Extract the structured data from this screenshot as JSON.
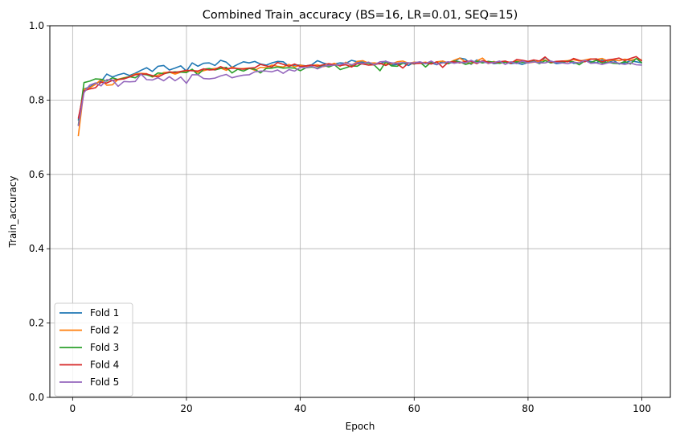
{
  "chart_data": {
    "type": "line",
    "title": "Combined Train_accuracy (BS=16, LR=0.01, SEQ=15)",
    "xlabel": "Epoch",
    "ylabel": "Train_accuracy",
    "xlim": [
      -4,
      105
    ],
    "ylim": [
      0.0,
      1.0
    ],
    "xticks": [
      0,
      20,
      40,
      60,
      80,
      100
    ],
    "yticks": [
      0.0,
      0.2,
      0.4,
      0.6,
      0.8,
      1.0
    ],
    "xtick_labels": [
      "0",
      "20",
      "40",
      "60",
      "80",
      "100"
    ],
    "ytick_labels": [
      "0.0",
      "0.2",
      "0.4",
      "0.6",
      "0.8",
      "1.0"
    ],
    "grid": true,
    "legend_position": "lower-left",
    "series": [
      {
        "name": "Fold 1",
        "color": "#1f77b4",
        "x": [
          1,
          2,
          3,
          4,
          5,
          6,
          7,
          8,
          9,
          10,
          11,
          12,
          13,
          14,
          15,
          16,
          17,
          18,
          19,
          20,
          21,
          22,
          23,
          24,
          25,
          26,
          27,
          28,
          29,
          30,
          31,
          32,
          33,
          34,
          35,
          36,
          37,
          38,
          39,
          40,
          41,
          42,
          43,
          44,
          45,
          46,
          47,
          48,
          49,
          50,
          51,
          52,
          53,
          54,
          55,
          56,
          57,
          58,
          59,
          60,
          61,
          62,
          63,
          64,
          65,
          66,
          67,
          68,
          69,
          70,
          71,
          72,
          73,
          74,
          75,
          76,
          77,
          78,
          79,
          80,
          81,
          82,
          83,
          84,
          85,
          86,
          87,
          88,
          89,
          90,
          91,
          92,
          93,
          94,
          95,
          96,
          97,
          98,
          99,
          100
        ],
        "values": [
          0.745,
          0.83,
          0.835,
          0.845,
          0.85,
          0.87,
          0.862,
          0.868,
          0.872,
          0.866,
          0.872,
          0.88,
          0.887,
          0.877,
          0.891,
          0.893,
          0.881,
          0.886,
          0.892,
          0.878,
          0.9,
          0.891,
          0.899,
          0.9,
          0.893,
          0.907,
          0.902,
          0.888,
          0.896,
          0.903,
          0.9,
          0.904,
          0.897,
          0.894,
          0.9,
          0.904,
          0.903,
          0.891,
          0.894,
          0.894,
          0.892,
          0.895,
          0.906,
          0.9,
          0.895,
          0.897,
          0.9,
          0.899,
          0.907,
          0.903,
          0.902,
          0.9,
          0.899,
          0.897,
          0.905,
          0.894,
          0.896,
          0.9,
          0.893,
          0.902,
          0.9,
          0.898,
          0.9,
          0.895,
          0.905,
          0.899,
          0.902,
          0.913,
          0.91,
          0.896,
          0.908,
          0.9,
          0.904,
          0.898,
          0.9,
          0.902,
          0.898,
          0.9,
          0.896,
          0.901,
          0.904,
          0.9,
          0.915,
          0.904,
          0.898,
          0.9,
          0.905,
          0.899,
          0.9,
          0.907,
          0.904,
          0.9,
          0.908,
          0.9,
          0.907,
          0.897,
          0.9,
          0.906,
          0.903,
          0.9
        ]
      },
      {
        "name": "Fold 2",
        "color": "#ff7f0e",
        "x": [
          1,
          2,
          3,
          4,
          5,
          6,
          7,
          8,
          9,
          10,
          11,
          12,
          13,
          14,
          15,
          16,
          17,
          18,
          19,
          20,
          21,
          22,
          23,
          24,
          25,
          26,
          27,
          28,
          29,
          30,
          31,
          32,
          33,
          34,
          35,
          36,
          37,
          38,
          39,
          40,
          41,
          42,
          43,
          44,
          45,
          46,
          47,
          48,
          49,
          50,
          51,
          52,
          53,
          54,
          55,
          56,
          57,
          58,
          59,
          60,
          61,
          62,
          63,
          64,
          65,
          66,
          67,
          68,
          69,
          70,
          71,
          72,
          73,
          74,
          75,
          76,
          77,
          78,
          79,
          80,
          81,
          82,
          83,
          84,
          85,
          86,
          87,
          88,
          89,
          90,
          91,
          92,
          93,
          94,
          95,
          96,
          97,
          98,
          99,
          100
        ],
        "values": [
          0.703,
          0.829,
          0.833,
          0.842,
          0.855,
          0.84,
          0.841,
          0.856,
          0.86,
          0.863,
          0.87,
          0.872,
          0.871,
          0.862,
          0.867,
          0.874,
          0.875,
          0.87,
          0.875,
          0.876,
          0.882,
          0.874,
          0.879,
          0.883,
          0.885,
          0.886,
          0.88,
          0.889,
          0.884,
          0.885,
          0.886,
          0.88,
          0.888,
          0.887,
          0.894,
          0.891,
          0.889,
          0.896,
          0.889,
          0.894,
          0.891,
          0.893,
          0.895,
          0.89,
          0.893,
          0.899,
          0.891,
          0.902,
          0.893,
          0.904,
          0.906,
          0.899,
          0.9,
          0.898,
          0.897,
          0.897,
          0.903,
          0.905,
          0.899,
          0.902,
          0.9,
          0.902,
          0.898,
          0.903,
          0.905,
          0.9,
          0.907,
          0.913,
          0.903,
          0.898,
          0.905,
          0.913,
          0.898,
          0.904,
          0.899,
          0.903,
          0.902,
          0.905,
          0.903,
          0.9,
          0.902,
          0.905,
          0.908,
          0.9,
          0.903,
          0.905,
          0.906,
          0.909,
          0.905,
          0.908,
          0.911,
          0.909,
          0.912,
          0.905,
          0.908,
          0.906,
          0.91,
          0.907,
          0.911,
          0.908
        ]
      },
      {
        "name": "Fold 3",
        "color": "#2ca02c",
        "x": [
          1,
          2,
          3,
          4,
          5,
          6,
          7,
          8,
          9,
          10,
          11,
          12,
          13,
          14,
          15,
          16,
          17,
          18,
          19,
          20,
          21,
          22,
          23,
          24,
          25,
          26,
          27,
          28,
          29,
          30,
          31,
          32,
          33,
          34,
          35,
          36,
          37,
          38,
          39,
          40,
          41,
          42,
          43,
          44,
          45,
          46,
          47,
          48,
          49,
          50,
          51,
          52,
          53,
          54,
          55,
          56,
          57,
          58,
          59,
          60,
          61,
          62,
          63,
          64,
          65,
          66,
          67,
          68,
          69,
          70,
          71,
          72,
          73,
          74,
          75,
          76,
          77,
          78,
          79,
          80,
          81,
          82,
          83,
          84,
          85,
          86,
          87,
          88,
          89,
          90,
          91,
          92,
          93,
          94,
          95,
          96,
          97,
          98,
          99,
          100
        ],
        "values": [
          0.732,
          0.847,
          0.851,
          0.857,
          0.856,
          0.851,
          0.86,
          0.855,
          0.859,
          0.863,
          0.86,
          0.87,
          0.868,
          0.863,
          0.873,
          0.871,
          0.874,
          0.876,
          0.875,
          0.874,
          0.883,
          0.868,
          0.883,
          0.885,
          0.881,
          0.885,
          0.888,
          0.873,
          0.883,
          0.878,
          0.885,
          0.883,
          0.873,
          0.885,
          0.886,
          0.889,
          0.886,
          0.887,
          0.886,
          0.879,
          0.887,
          0.889,
          0.886,
          0.894,
          0.889,
          0.895,
          0.882,
          0.887,
          0.892,
          0.891,
          0.9,
          0.899,
          0.894,
          0.879,
          0.903,
          0.892,
          0.891,
          0.899,
          0.9,
          0.897,
          0.902,
          0.889,
          0.902,
          0.897,
          0.901,
          0.898,
          0.905,
          0.903,
          0.896,
          0.9,
          0.904,
          0.9,
          0.904,
          0.902,
          0.899,
          0.902,
          0.9,
          0.903,
          0.901,
          0.904,
          0.905,
          0.898,
          0.906,
          0.9,
          0.904,
          0.902,
          0.905,
          0.903,
          0.895,
          0.906,
          0.901,
          0.907,
          0.9,
          0.902,
          0.899,
          0.898,
          0.904,
          0.897,
          0.912,
          0.9
        ]
      },
      {
        "name": "Fold 4",
        "color": "#d62728",
        "x": [
          1,
          2,
          3,
          4,
          5,
          6,
          7,
          8,
          9,
          10,
          11,
          12,
          13,
          14,
          15,
          16,
          17,
          18,
          19,
          20,
          21,
          22,
          23,
          24,
          25,
          26,
          27,
          28,
          29,
          30,
          31,
          32,
          33,
          34,
          35,
          36,
          37,
          38,
          39,
          40,
          41,
          42,
          43,
          44,
          45,
          46,
          47,
          48,
          49,
          50,
          51,
          52,
          53,
          54,
          55,
          56,
          57,
          58,
          59,
          60,
          61,
          62,
          63,
          64,
          65,
          66,
          67,
          68,
          69,
          70,
          71,
          72,
          73,
          74,
          75,
          76,
          77,
          78,
          79,
          80,
          81,
          82,
          83,
          84,
          85,
          86,
          87,
          88,
          89,
          90,
          91,
          92,
          93,
          94,
          95,
          96,
          97,
          98,
          99,
          100
        ],
        "values": [
          0.75,
          0.825,
          0.83,
          0.833,
          0.848,
          0.846,
          0.853,
          0.855,
          0.857,
          0.862,
          0.868,
          0.87,
          0.87,
          0.866,
          0.862,
          0.87,
          0.876,
          0.874,
          0.877,
          0.88,
          0.879,
          0.878,
          0.884,
          0.881,
          0.882,
          0.89,
          0.884,
          0.886,
          0.885,
          0.883,
          0.886,
          0.887,
          0.896,
          0.892,
          0.889,
          0.901,
          0.896,
          0.891,
          0.897,
          0.89,
          0.892,
          0.894,
          0.891,
          0.895,
          0.898,
          0.895,
          0.893,
          0.895,
          0.889,
          0.898,
          0.897,
          0.894,
          0.895,
          0.899,
          0.893,
          0.9,
          0.898,
          0.886,
          0.9,
          0.898,
          0.899,
          0.9,
          0.897,
          0.903,
          0.888,
          0.902,
          0.903,
          0.9,
          0.904,
          0.905,
          0.898,
          0.906,
          0.902,
          0.9,
          0.903,
          0.905,
          0.899,
          0.909,
          0.907,
          0.904,
          0.908,
          0.905,
          0.916,
          0.902,
          0.904,
          0.905,
          0.903,
          0.912,
          0.907,
          0.903,
          0.91,
          0.911,
          0.903,
          0.908,
          0.91,
          0.913,
          0.906,
          0.912,
          0.917,
          0.905
        ]
      },
      {
        "name": "Fold 5",
        "color": "#9467bd",
        "x": [
          1,
          2,
          3,
          4,
          5,
          6,
          7,
          8,
          9,
          10,
          11,
          12,
          13,
          14,
          15,
          16,
          17,
          18,
          19,
          20,
          21,
          22,
          23,
          24,
          25,
          26,
          27,
          28,
          29,
          30,
          31,
          32,
          33,
          34,
          35,
          36,
          37,
          38,
          39,
          40,
          41,
          42,
          43,
          44,
          45,
          46,
          47,
          48,
          49,
          50,
          51,
          52,
          53,
          54,
          55,
          56,
          57,
          58,
          59,
          60,
          61,
          62,
          63,
          64,
          65,
          66,
          67,
          68,
          69,
          70,
          71,
          72,
          73,
          74,
          75,
          76,
          77,
          78,
          79,
          80,
          81,
          82,
          83,
          84,
          85,
          86,
          87,
          88,
          89,
          90,
          91,
          92,
          93,
          94,
          95,
          96,
          97,
          98,
          99,
          100
        ],
        "values": [
          0.73,
          0.82,
          0.84,
          0.846,
          0.838,
          0.855,
          0.854,
          0.837,
          0.85,
          0.849,
          0.85,
          0.87,
          0.855,
          0.854,
          0.86,
          0.852,
          0.863,
          0.852,
          0.862,
          0.845,
          0.868,
          0.868,
          0.858,
          0.857,
          0.859,
          0.865,
          0.869,
          0.86,
          0.864,
          0.867,
          0.868,
          0.876,
          0.878,
          0.878,
          0.876,
          0.881,
          0.872,
          0.882,
          0.878,
          0.888,
          0.887,
          0.891,
          0.884,
          0.891,
          0.893,
          0.894,
          0.895,
          0.9,
          0.895,
          0.9,
          0.899,
          0.902,
          0.895,
          0.903,
          0.904,
          0.9,
          0.899,
          0.901,
          0.9,
          0.9,
          0.903,
          0.898,
          0.905,
          0.896,
          0.9,
          0.903,
          0.899,
          0.902,
          0.9,
          0.907,
          0.9,
          0.904,
          0.899,
          0.901,
          0.905,
          0.896,
          0.903,
          0.898,
          0.905,
          0.9,
          0.903,
          0.9,
          0.9,
          0.905,
          0.901,
          0.9,
          0.898,
          0.902,
          0.9,
          0.907,
          0.899,
          0.9,
          0.896,
          0.9,
          0.902,
          0.899,
          0.896,
          0.9,
          0.895,
          0.894
        ]
      }
    ]
  }
}
